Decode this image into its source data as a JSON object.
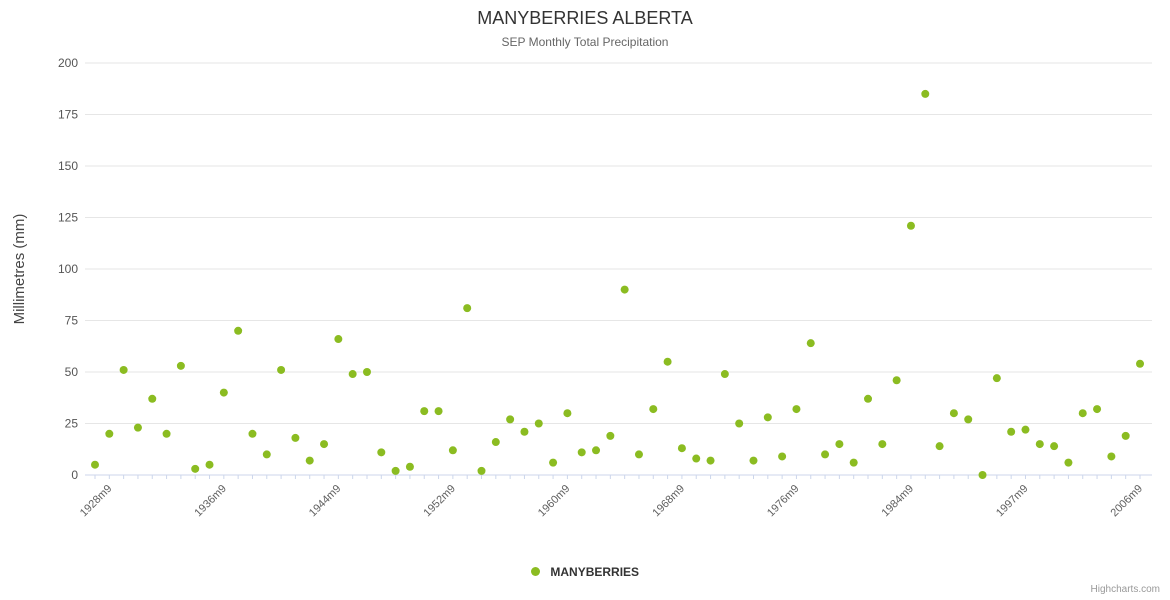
{
  "chart": {
    "title": "MANYBERRIES ALBERTA",
    "subtitle": "SEP Monthly Total Precipitation",
    "y_axis_title": "Millimetres (mm)",
    "credit": "Highcharts.com",
    "legend": {
      "label": "MANYBERRIES",
      "marker_color": "#8bbc21"
    }
  },
  "chart_data": {
    "type": "scatter",
    "title": "MANYBERRIES ALBERTA",
    "subtitle": "SEP Monthly Total Precipitation",
    "xlabel": "",
    "ylabel": "Millimetres (mm)",
    "ylim": [
      0,
      200
    ],
    "y_ticks": [
      0,
      25,
      50,
      75,
      100,
      125,
      150,
      175,
      200
    ],
    "x_tick_labels": [
      "1928m9",
      "1936m9",
      "1944m9",
      "1952m9",
      "1960m9",
      "1968m9",
      "1976m9",
      "1984m9",
      "1997m9",
      "2006m9"
    ],
    "x_tick_indices": [
      1,
      9,
      17,
      25,
      33,
      41,
      49,
      57,
      65,
      73
    ],
    "grid": "horizontal",
    "legend_position": "bottom-center",
    "marker": {
      "shape": "circle",
      "radius": 4,
      "color": "#8bbc21"
    },
    "series": [
      {
        "name": "MANYBERRIES",
        "color": "#8bbc21",
        "values": [
          5,
          20,
          51,
          23,
          37,
          20,
          53,
          3,
          5,
          40,
          70,
          20,
          10,
          51,
          18,
          7,
          15,
          66,
          49,
          50,
          11,
          2,
          4,
          31,
          31,
          12,
          81,
          2,
          16,
          27,
          21,
          25,
          6,
          30,
          11,
          12,
          19,
          90,
          10,
          32,
          55,
          13,
          8,
          7,
          49,
          25,
          7,
          28,
          9,
          32,
          64,
          10,
          15,
          6,
          37,
          15,
          46,
          121,
          185,
          14,
          30,
          27,
          0,
          47,
          21,
          22,
          15,
          14,
          6,
          30,
          32,
          9,
          19,
          54
        ]
      }
    ]
  }
}
